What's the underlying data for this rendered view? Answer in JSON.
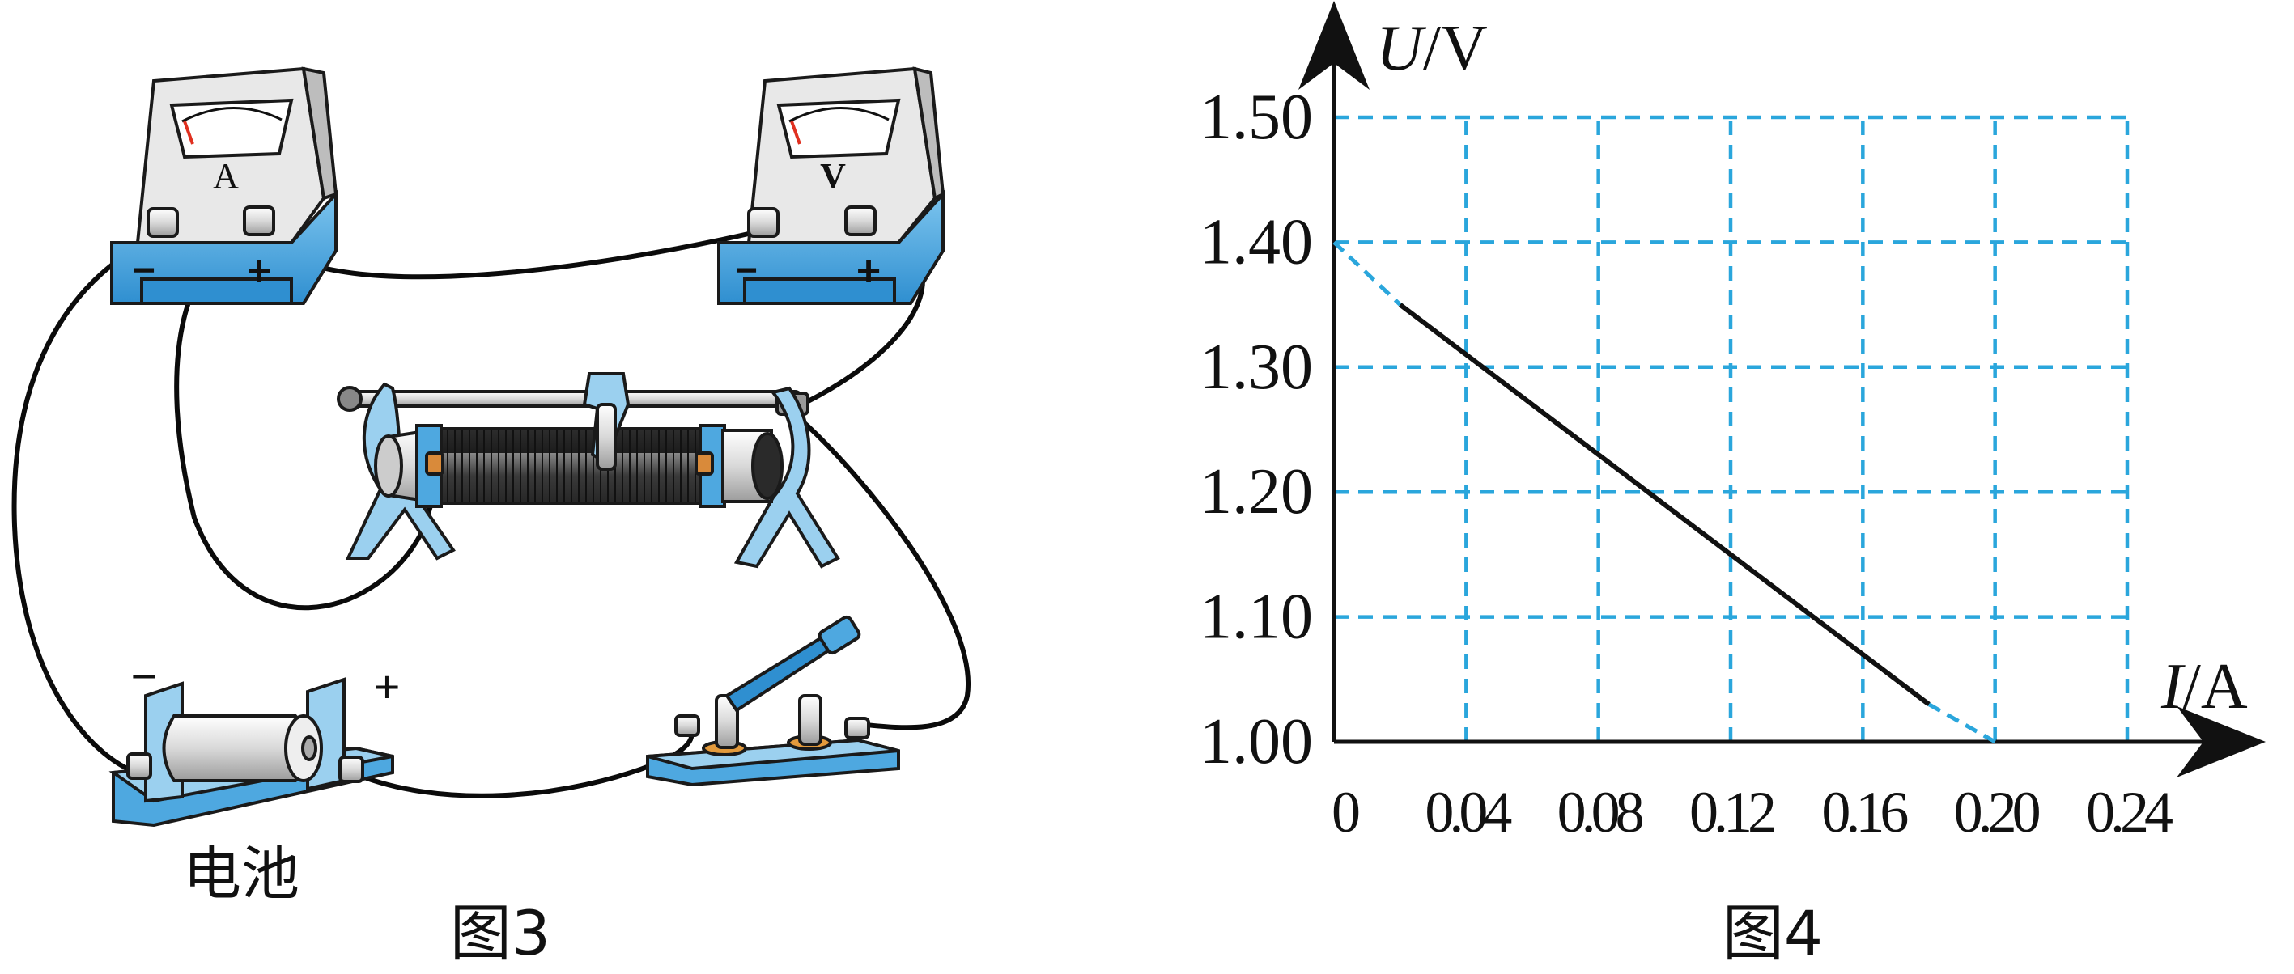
{
  "figure3": {
    "caption": "图3",
    "ammeter": {
      "letter": "A",
      "minus": "−",
      "plus": "+"
    },
    "voltmeter": {
      "letter": "V",
      "minus": "−",
      "plus": "+"
    },
    "battery": {
      "label": "电池",
      "minus": "−",
      "plus": "+"
    },
    "colors": {
      "instrument_blue": "#2f8fd0",
      "body_gray": "#e6e6e6",
      "copper": "#d98a3a",
      "wire": "#0b0b0b"
    }
  },
  "figure4": {
    "caption": "图4",
    "chart_data": {
      "type": "line",
      "title": "",
      "xlabel": "I/A",
      "ylabel": "U/V",
      "x_var": "I",
      "x_unit": "A",
      "y_var": "U",
      "y_unit": "V",
      "xlim": [
        0,
        0.24
      ],
      "ylim": [
        1.0,
        1.5
      ],
      "x_ticks": [
        "0",
        "0.04",
        "0.08",
        "0.12",
        "0.16",
        "0.20",
        "0.24"
      ],
      "x_tick_values": [
        0,
        0.04,
        0.08,
        0.12,
        0.16,
        0.2,
        0.24
      ],
      "y_ticks": [
        "1.00",
        "1.10",
        "1.20",
        "1.30",
        "1.40",
        "1.50"
      ],
      "y_tick_values": [
        1.0,
        1.1,
        1.2,
        1.3,
        1.4,
        1.5
      ],
      "grid": true,
      "grid_color": "#2aa6dc",
      "series": [
        {
          "style": "solid",
          "color": "#111111",
          "x": [
            0.02,
            0.18
          ],
          "y": [
            1.35,
            1.03
          ]
        },
        {
          "style": "dashed",
          "color": "#2aa6dc",
          "x": [
            0,
            0.02
          ],
          "y": [
            1.4,
            1.35
          ]
        },
        {
          "style": "dashed",
          "color": "#2aa6dc",
          "x": [
            0.18,
            0.2
          ],
          "y": [
            1.03,
            1.0
          ]
        }
      ]
    }
  }
}
